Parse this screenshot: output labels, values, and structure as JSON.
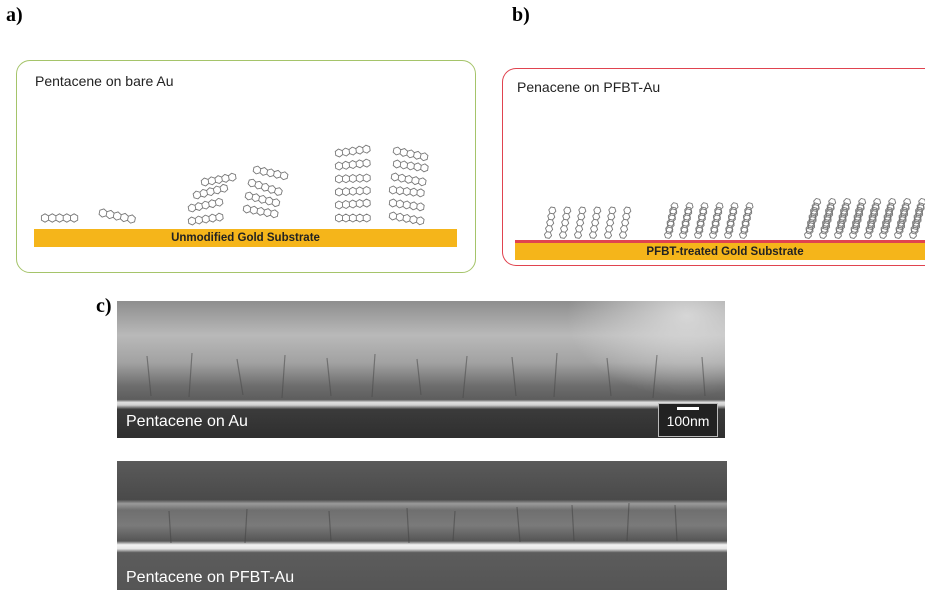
{
  "panel_a": {
    "label": "a)",
    "title": "Pentacene on bare Au",
    "substrate_label": "Unmodified Gold Substrate",
    "border_color": "#a5c46a",
    "substrate_color": "#f5b51a"
  },
  "panel_b": {
    "label": "b)",
    "title": "Penacene on PFBT-Au",
    "substrate_label": "PFBT-treated Gold Substrate",
    "border_color": "#e0434f",
    "substrate_color": "#f5b51a"
  },
  "panel_c": {
    "label": "c)",
    "top_caption": "Pentacene on Au",
    "scale_label": "100nm",
    "bottom_caption": "Pentacene on PFBT-Au"
  }
}
